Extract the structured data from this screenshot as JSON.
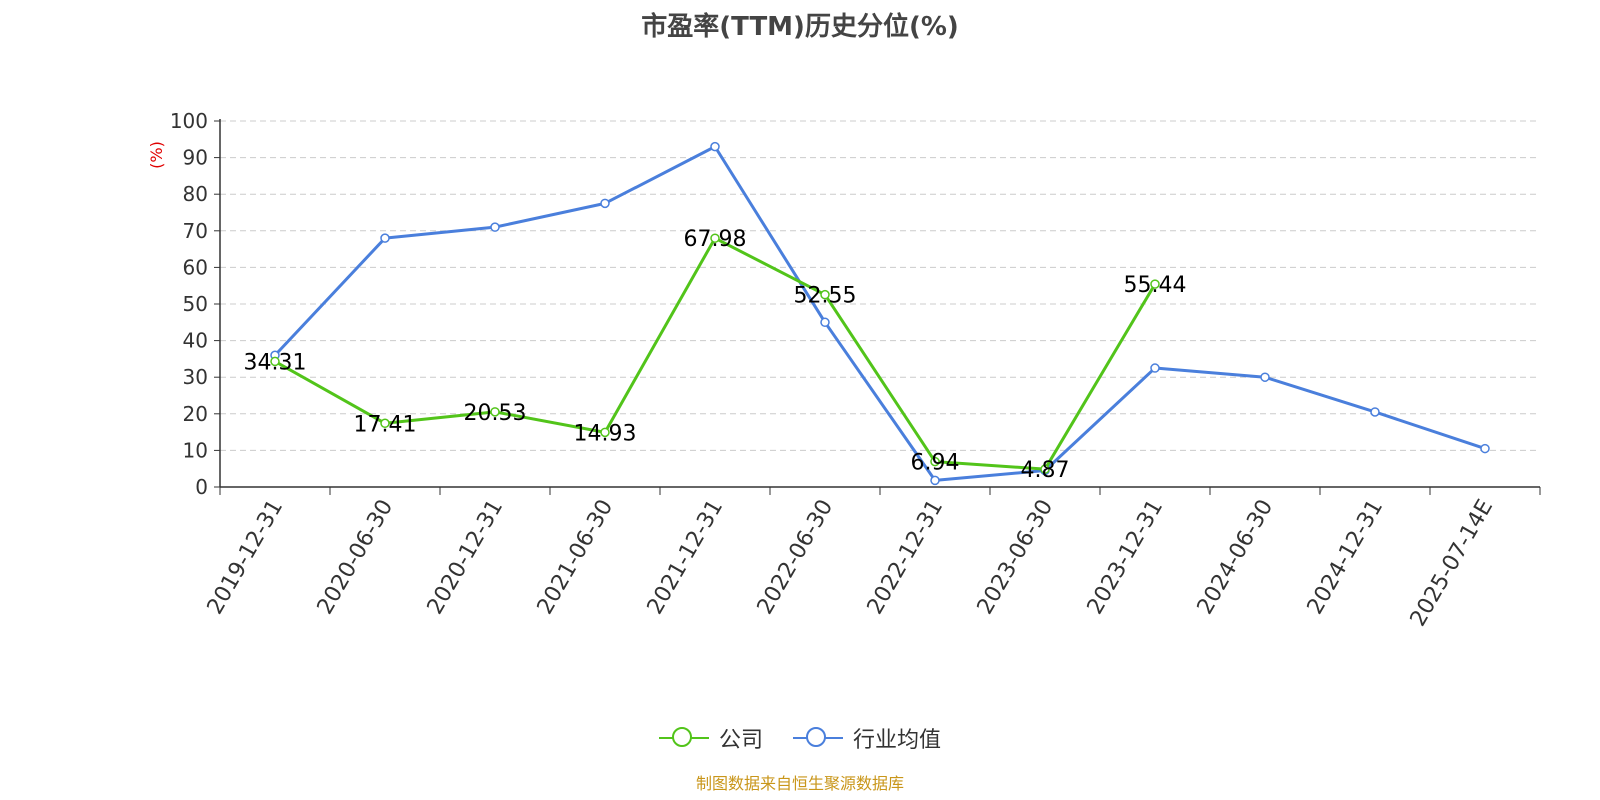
{
  "chart_data": {
    "type": "line",
    "title": "市盈率(TTM)历史分位(%)",
    "ylabel": "(%)",
    "ylim": [
      0,
      100
    ],
    "yticks": [
      "0",
      "10",
      "20",
      "30",
      "40",
      "50",
      "60",
      "70",
      "80",
      "90",
      "100"
    ],
    "categories": [
      "2019-12-31",
      "2020-06-30",
      "2020-12-31",
      "2021-06-30",
      "2021-12-31",
      "2022-06-30",
      "2022-12-31",
      "2023-06-30",
      "2023-12-31",
      "2024-06-30",
      "2024-12-31",
      "2025-07-14E"
    ],
    "series": [
      {
        "name": "公司",
        "color": "#52c41a",
        "values": [
          34.31,
          17.41,
          20.53,
          14.93,
          67.98,
          52.55,
          6.94,
          4.87,
          55.44,
          null,
          null,
          null
        ],
        "labels": [
          "34.31",
          "17.41",
          "20.53",
          "14.93",
          "67.98",
          "52.55",
          "6.94",
          "4.87",
          "55.44",
          null,
          null,
          null
        ]
      },
      {
        "name": "行业均值",
        "color": "#4a7fdc",
        "values": [
          36,
          68,
          71,
          77.5,
          93,
          45,
          1.8,
          4.5,
          32.5,
          30,
          20.5,
          10.5
        ]
      }
    ],
    "grid": "horizontal-dashed",
    "legend": "bottom-center",
    "source": "制图数据来自恒生聚源数据库"
  }
}
